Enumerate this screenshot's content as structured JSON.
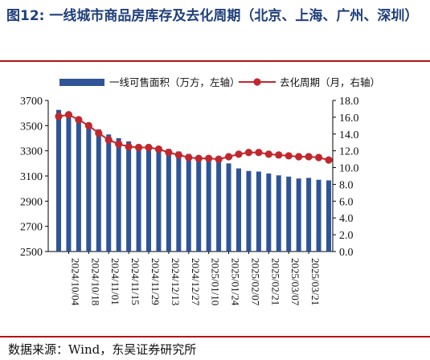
{
  "title": "图12:  一线城市商品房库存及去化周期（北京、上海、广州、深圳）",
  "source": "数据来源：Wind，东吴证券研究所",
  "colors": {
    "bar": "#2f5597",
    "line": "#c0282d",
    "marker": "#c0282d",
    "rule": "#b5121b"
  },
  "chart_data": {
    "type": "bar",
    "legend": [
      {
        "name": "一线可售面积（万方，左轴）",
        "kind": "bar"
      },
      {
        "name": "去化周期（月，右轴）",
        "kind": "line"
      }
    ],
    "legend_placement": "top",
    "x_tick_labels": [
      "2024/10/04",
      "2024/10/18",
      "2024/11/01",
      "2024/11/15",
      "2024/11/29",
      "2024/12/13",
      "2024/12/27",
      "2025/01/10",
      "2025/01/24",
      "2025/02/07",
      "2025/02/21",
      "2025/03/07",
      "2025/03/21"
    ],
    "left_axis": {
      "ylim": [
        2500,
        3700
      ],
      "ticks": [
        2500,
        2700,
        2900,
        3100,
        3300,
        3500,
        3700
      ]
    },
    "right_axis": {
      "ylim": [
        0.0,
        18.0
      ],
      "ticks": [
        "0.0",
        "2.0",
        "4.0",
        "6.0",
        "8.0",
        "10.0",
        "12.0",
        "14.0",
        "16.0",
        "18.0"
      ]
    },
    "series": [
      {
        "name": "一线可售面积（万方，左轴）",
        "axis": "left",
        "type": "bar",
        "values": [
          3625,
          3580,
          3540,
          3505,
          3470,
          3430,
          3400,
          3375,
          3350,
          3335,
          3322,
          3315,
          3295,
          3275,
          3255,
          3240,
          3225,
          3200,
          3160,
          3140,
          3135,
          3120,
          3105,
          3095,
          3080,
          3085,
          3070,
          3065
        ]
      },
      {
        "name": "去化周期（月，右轴）",
        "axis": "right",
        "type": "line",
        "values": [
          16.1,
          16.3,
          15.7,
          15.0,
          14.1,
          13.3,
          12.8,
          12.5,
          12.4,
          12.4,
          12.2,
          11.8,
          11.5,
          11.2,
          11.1,
          11.1,
          11.0,
          11.3,
          11.6,
          11.8,
          11.8,
          11.6,
          11.5,
          11.4,
          11.3,
          11.3,
          11.2,
          10.9
        ]
      }
    ]
  }
}
